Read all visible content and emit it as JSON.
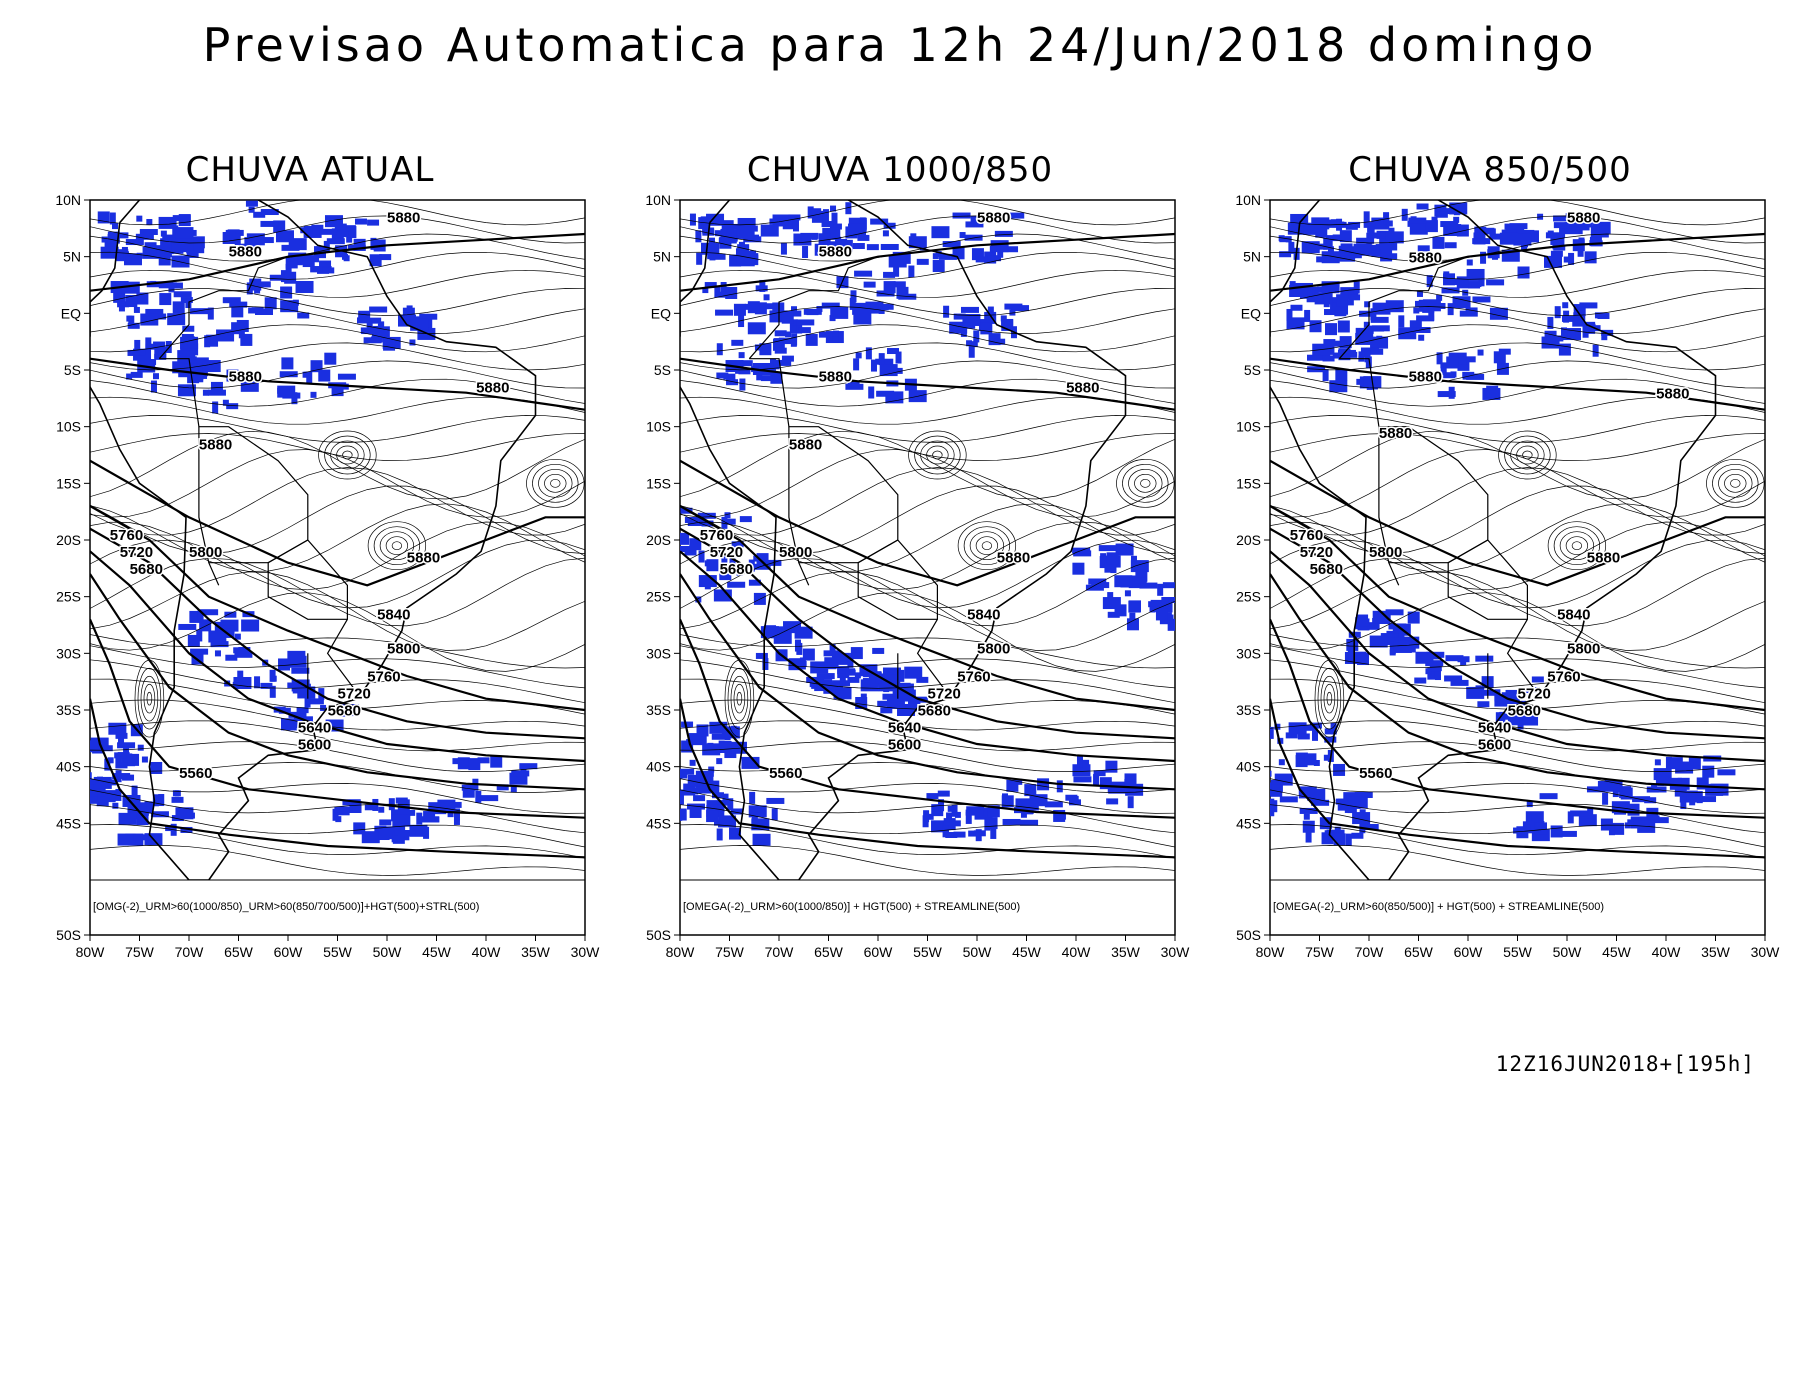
{
  "title": "Previsao Automatica para 12h 24/Jun/2018 domingo",
  "run_stamp": "12Z16JUN2018+[195h]",
  "colors": {
    "rain": "#1a2fe0",
    "contour": "#000000",
    "streamline": "#000000",
    "background": "#ffffff"
  },
  "axes": {
    "lat_ticks": [
      "10N",
      "5N",
      "EQ",
      "5S",
      "10S",
      "15S",
      "20S",
      "25S",
      "30S",
      "35S",
      "40S",
      "45S",
      "50S"
    ],
    "lon_ticks": [
      "80W",
      "75W",
      "70W",
      "65W",
      "60W",
      "55W",
      "50W",
      "45W",
      "40W",
      "35W",
      "30W"
    ],
    "lat_range": [
      -50,
      10
    ],
    "lon_range": [
      -80,
      -30
    ]
  },
  "panels": [
    {
      "title": "CHUVA ATUAL",
      "caption": "[OMG(-2)_URM>60(1000/850)_URM>60(850/700/500)]+HGT(500)+STRL(500)",
      "rain_areas": [
        {
          "lon": -76,
          "lat": 7
        },
        {
          "lon": -71,
          "lat": 7
        },
        {
          "lon": -64,
          "lat": 8
        },
        {
          "lon": -57,
          "lat": 6
        },
        {
          "lon": -53,
          "lat": 7
        },
        {
          "lon": -75,
          "lat": 1
        },
        {
          "lon": -68,
          "lat": 0
        },
        {
          "lon": -61,
          "lat": 2
        },
        {
          "lon": -50,
          "lat": -1
        },
        {
          "lon": -73,
          "lat": -4
        },
        {
          "lon": -68,
          "lat": -6
        },
        {
          "lon": -58,
          "lat": -5
        },
        {
          "lon": -68,
          "lat": -28
        },
        {
          "lon": -63,
          "lat": -31
        },
        {
          "lon": -58,
          "lat": -34
        },
        {
          "lon": -77,
          "lat": -38
        },
        {
          "lon": -79,
          "lat": -42
        },
        {
          "lon": -74,
          "lat": -44
        },
        {
          "lon": -52,
          "lat": -44
        },
        {
          "lon": -46,
          "lat": -44
        },
        {
          "lon": -40,
          "lat": -41
        }
      ],
      "contour_labels": [
        {
          "text": "5880",
          "lon": -50,
          "lat": 8
        },
        {
          "text": "5880",
          "lon": -66,
          "lat": 5
        },
        {
          "text": "5880",
          "lon": -66,
          "lat": -6
        },
        {
          "text": "5880",
          "lon": -41,
          "lat": -7
        },
        {
          "text": "5880",
          "lon": -69,
          "lat": -12
        },
        {
          "text": "5880",
          "lon": -48,
          "lat": -22
        },
        {
          "text": "5760",
          "lon": -78,
          "lat": -20
        },
        {
          "text": "5720",
          "lon": -77,
          "lat": -21.5
        },
        {
          "text": "5680",
          "lon": -76,
          "lat": -23
        },
        {
          "text": "5800",
          "lon": -70,
          "lat": -21.5
        },
        {
          "text": "5840",
          "lon": -51,
          "lat": -27
        },
        {
          "text": "5800",
          "lon": -50,
          "lat": -30
        },
        {
          "text": "5760",
          "lon": -52,
          "lat": -32.5
        },
        {
          "text": "5720",
          "lon": -55,
          "lat": -34
        },
        {
          "text": "5680",
          "lon": -56,
          "lat": -35.5
        },
        {
          "text": "5640",
          "lon": -59,
          "lat": -37
        },
        {
          "text": "5600",
          "lon": -59,
          "lat": -38.5
        },
        {
          "text": "5560",
          "lon": -71,
          "lat": -41
        }
      ]
    },
    {
      "title": "CHUVA 1000/850",
      "caption": "[OMEGA(-2)_URM>60(1000/850)] + HGT(500) + STREAMLINE(500)",
      "rain_areas": [
        {
          "lon": -76,
          "lat": 7
        },
        {
          "lon": -71,
          "lat": 7
        },
        {
          "lon": -64,
          "lat": 8
        },
        {
          "lon": -57,
          "lat": 6
        },
        {
          "lon": -50,
          "lat": 7
        },
        {
          "lon": -75,
          "lat": 1
        },
        {
          "lon": -68,
          "lat": -1
        },
        {
          "lon": -61,
          "lat": 2
        },
        {
          "lon": -50,
          "lat": -1
        },
        {
          "lon": -73,
          "lat": -4
        },
        {
          "lon": -60,
          "lat": -5
        },
        {
          "lon": -77,
          "lat": -19
        },
        {
          "lon": -75,
          "lat": -23
        },
        {
          "lon": -70,
          "lat": -29
        },
        {
          "lon": -64,
          "lat": -31
        },
        {
          "lon": -59,
          "lat": -33
        },
        {
          "lon": -37,
          "lat": -22
        },
        {
          "lon": -34,
          "lat": -25
        },
        {
          "lon": -77,
          "lat": -38
        },
        {
          "lon": -79,
          "lat": -42
        },
        {
          "lon": -74,
          "lat": -44
        },
        {
          "lon": -52,
          "lat": -44
        },
        {
          "lon": -45,
          "lat": -43
        },
        {
          "lon": -38,
          "lat": -41
        }
      ],
      "contour_labels": [
        {
          "text": "5880",
          "lon": -50,
          "lat": 8
        },
        {
          "text": "5880",
          "lon": -66,
          "lat": 5
        },
        {
          "text": "5880",
          "lon": -66,
          "lat": -6
        },
        {
          "text": "5880",
          "lon": -41,
          "lat": -7
        },
        {
          "text": "5880",
          "lon": -69,
          "lat": -12
        },
        {
          "text": "5880",
          "lon": -48,
          "lat": -22
        },
        {
          "text": "5760",
          "lon": -78,
          "lat": -20
        },
        {
          "text": "5720",
          "lon": -77,
          "lat": -21.5
        },
        {
          "text": "5680",
          "lon": -76,
          "lat": -23
        },
        {
          "text": "5800",
          "lon": -70,
          "lat": -21.5
        },
        {
          "text": "5840",
          "lon": -51,
          "lat": -27
        },
        {
          "text": "5800",
          "lon": -50,
          "lat": -30
        },
        {
          "text": "5760",
          "lon": -52,
          "lat": -32.5
        },
        {
          "text": "5720",
          "lon": -55,
          "lat": -34
        },
        {
          "text": "5680",
          "lon": -56,
          "lat": -35.5
        },
        {
          "text": "5640",
          "lon": -59,
          "lat": -37
        },
        {
          "text": "5600",
          "lon": -59,
          "lat": -38.5
        },
        {
          "text": "5560",
          "lon": -71,
          "lat": -41
        }
      ]
    },
    {
      "title": "CHUVA 850/500",
      "caption": "[OMEGA(-2)_URM>60(850/500)] + HGT(500) + STREAMLINE(500)",
      "rain_areas": [
        {
          "lon": -76,
          "lat": 7
        },
        {
          "lon": -71,
          "lat": 7
        },
        {
          "lon": -64,
          "lat": 8
        },
        {
          "lon": -57,
          "lat": 6
        },
        {
          "lon": -50,
          "lat": 7
        },
        {
          "lon": -75,
          "lat": 1
        },
        {
          "lon": -68,
          "lat": 0
        },
        {
          "lon": -61,
          "lat": 2
        },
        {
          "lon": -50,
          "lat": -1
        },
        {
          "lon": -73,
          "lat": -4
        },
        {
          "lon": -60,
          "lat": -5
        },
        {
          "lon": -69,
          "lat": -28
        },
        {
          "lon": -62,
          "lat": -31
        },
        {
          "lon": -57,
          "lat": -34
        },
        {
          "lon": -77,
          "lat": -38
        },
        {
          "lon": -79,
          "lat": -42
        },
        {
          "lon": -74,
          "lat": -44
        },
        {
          "lon": -52,
          "lat": -44
        },
        {
          "lon": -45,
          "lat": -43
        },
        {
          "lon": -38,
          "lat": -41
        }
      ],
      "contour_labels": [
        {
          "text": "5880",
          "lon": -50,
          "lat": 8
        },
        {
          "text": "5880",
          "lon": -66,
          "lat": 4.5
        },
        {
          "text": "5880",
          "lon": -66,
          "lat": -6
        },
        {
          "text": "5880",
          "lon": -41,
          "lat": -7.5
        },
        {
          "text": "5880",
          "lon": -69,
          "lat": -11
        },
        {
          "text": "5880",
          "lon": -48,
          "lat": -22
        },
        {
          "text": "5760",
          "lon": -78,
          "lat": -20
        },
        {
          "text": "5720",
          "lon": -77,
          "lat": -21.5
        },
        {
          "text": "5680",
          "lon": -76,
          "lat": -23
        },
        {
          "text": "5800",
          "lon": -70,
          "lat": -21.5
        },
        {
          "text": "5840",
          "lon": -51,
          "lat": -27
        },
        {
          "text": "5800",
          "lon": -50,
          "lat": -30
        },
        {
          "text": "5760",
          "lon": -52,
          "lat": -32.5
        },
        {
          "text": "5720",
          "lon": -55,
          "lat": -34
        },
        {
          "text": "5680",
          "lon": -56,
          "lat": -35.5
        },
        {
          "text": "5640",
          "lon": -59,
          "lat": -37
        },
        {
          "text": "5600",
          "lon": -59,
          "lat": -38.5
        },
        {
          "text": "5560",
          "lon": -71,
          "lat": -41
        }
      ]
    }
  ]
}
